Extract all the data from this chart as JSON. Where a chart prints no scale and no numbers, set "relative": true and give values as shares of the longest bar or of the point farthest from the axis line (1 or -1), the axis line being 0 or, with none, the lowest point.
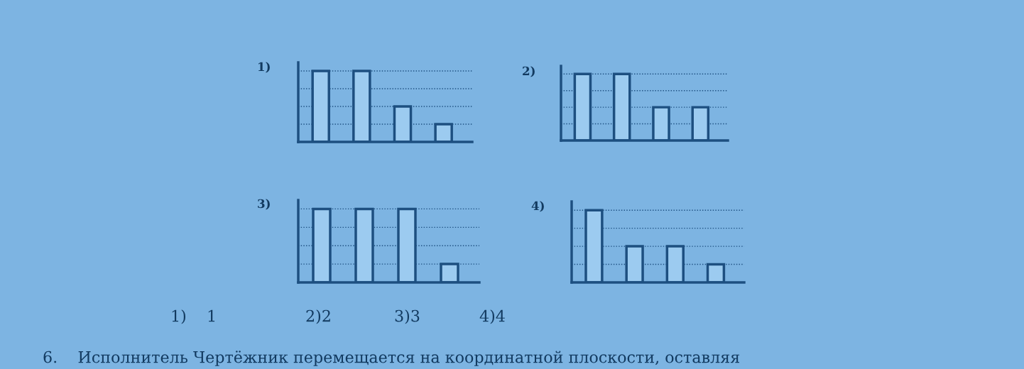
{
  "chart_data": [
    {
      "type": "bar",
      "title": "1)",
      "categories": [
        null,
        null,
        null,
        null
      ],
      "relative": true,
      "color": "#9ccbf0",
      "values": [
        1,
        1,
        0.5,
        0.25
      ],
      "ref_lines": [
        {
          "axis": "y",
          "value": 0.25,
          "line_style": "dotted",
          "color": "#1d4f80"
        },
        {
          "axis": "y",
          "value": 0.5,
          "line_style": "dotted",
          "color": "#1d4f80"
        },
        {
          "axis": "y",
          "value": 0.75,
          "line_style": "dotted",
          "color": "#1d4f80"
        },
        {
          "axis": "y",
          "value": 1,
          "line_style": "dotted",
          "color": "#1d4f80"
        }
      ]
    },
    {
      "type": "bar",
      "title": "2)",
      "categories": [
        null,
        null,
        null,
        null
      ],
      "relative": true,
      "color": "#9ccbf0",
      "values": [
        1,
        1,
        0.5,
        0.5
      ],
      "ref_lines": [
        {
          "axis": "y",
          "value": 0.25,
          "line_style": "dotted",
          "color": "#1d4f80"
        },
        {
          "axis": "y",
          "value": 0.5,
          "line_style": "dotted",
          "color": "#1d4f80"
        },
        {
          "axis": "y",
          "value": 0.75,
          "line_style": "dotted",
          "color": "#1d4f80"
        },
        {
          "axis": "y",
          "value": 1,
          "line_style": "dotted",
          "color": "#1d4f80"
        }
      ]
    },
    {
      "type": "bar",
      "title": "3)",
      "categories": [
        null,
        null,
        null,
        null
      ],
      "relative": true,
      "color": "#9ccbf0",
      "values": [
        1,
        1,
        1,
        0.25
      ],
      "ref_lines": [
        {
          "axis": "y",
          "value": 0.25,
          "line_style": "dotted",
          "color": "#1d4f80"
        },
        {
          "axis": "y",
          "value": 0.5,
          "line_style": "dotted",
          "color": "#1d4f80"
        },
        {
          "axis": "y",
          "value": 0.75,
          "line_style": "dotted",
          "color": "#1d4f80"
        },
        {
          "axis": "y",
          "value": 1,
          "line_style": "dotted",
          "color": "#1d4f80"
        }
      ]
    },
    {
      "type": "bar",
      "title": "4)",
      "categories": [
        null,
        null,
        null,
        null
      ],
      "relative": true,
      "color": "#9ccbf0",
      "values": [
        1,
        0.5,
        0.5,
        0.25
      ],
      "ref_lines": [
        {
          "axis": "y",
          "value": 0.25,
          "line_style": "dotted",
          "color": "#1d4f80"
        },
        {
          "axis": "y",
          "value": 0.5,
          "line_style": "dotted",
          "color": "#1d4f80"
        },
        {
          "axis": "y",
          "value": 0.75,
          "line_style": "dotted",
          "color": "#1d4f80"
        },
        {
          "axis": "y",
          "value": 1,
          "line_style": "dotted",
          "color": "#1d4f80"
        }
      ]
    },
    {
      "type": "other",
      "annotations": [
        "1)    1",
        "2)2",
        "3)3",
        "4)4",
        "6.    Исполнитель Чертёжник перемещается на координатной плоскости, оставляя"
      ]
    }
  ]
}
